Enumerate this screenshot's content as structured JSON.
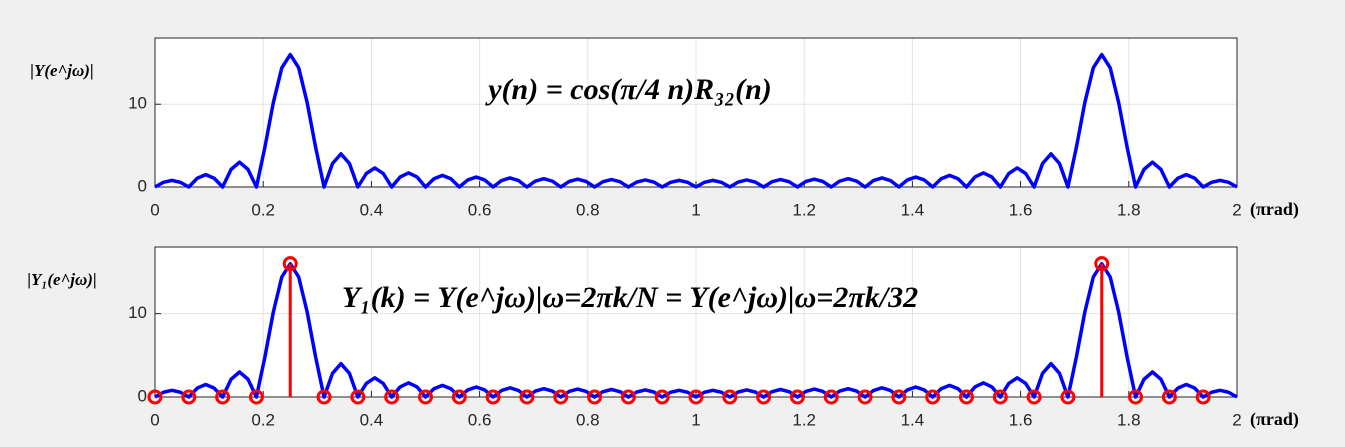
{
  "chart_data": [
    {
      "type": "line",
      "ylabel": "|Y(e^jω)|",
      "annotation": "y(n) = cos(π/4 n)R₃₂(n)",
      "x_unit": "(πrad)",
      "xlim": [
        0,
        2
      ],
      "xticks": [
        0,
        0.2,
        0.4,
        0.6,
        0.8,
        1,
        1.2,
        1.4,
        1.6,
        1.8,
        2
      ],
      "ylim": [
        0,
        18
      ],
      "yticks": [
        0,
        10
      ],
      "grid": true,
      "x": [
        0,
        0.015625,
        0.03125,
        0.046875,
        0.0625,
        0.078125,
        0.09375,
        0.109375,
        0.125,
        0.140625,
        0.15625,
        0.171875,
        0.1875,
        0.203125,
        0.21875,
        0.234375,
        0.25,
        0.265625,
        0.28125,
        0.296875,
        0.3125,
        0.328125,
        0.34375,
        0.359375,
        0.375,
        0.390625,
        0.40625,
        0.421875,
        0.4375,
        0.453125,
        0.46875,
        0.484375,
        0.5,
        0.515625,
        0.53125,
        0.546875,
        0.5625,
        0.578125,
        0.59375,
        0.609375,
        0.625,
        0.640625,
        0.65625,
        0.671875,
        0.6875,
        0.703125,
        0.71875,
        0.734375,
        0.75,
        0.765625,
        0.78125,
        0.796875,
        0.8125,
        0.828125,
        0.84375,
        0.859375,
        0.875,
        0.890625,
        0.90625,
        0.921875,
        0.9375,
        0.953125,
        0.96875,
        0.984375,
        1,
        1.015625,
        1.03125,
        1.046875,
        1.0625,
        1.078125,
        1.09375,
        1.109375,
        1.125,
        1.140625,
        1.15625,
        1.171875,
        1.1875,
        1.203125,
        1.21875,
        1.234375,
        1.25,
        1.265625,
        1.28125,
        1.296875,
        1.3125,
        1.328125,
        1.34375,
        1.359375,
        1.375,
        1.390625,
        1.40625,
        1.421875,
        1.4375,
        1.453125,
        1.46875,
        1.484375,
        1.5,
        1.515625,
        1.53125,
        1.546875,
        1.5625,
        1.578125,
        1.59375,
        1.609375,
        1.625,
        1.640625,
        1.65625,
        1.671875,
        1.6875,
        1.703125,
        1.71875,
        1.734375,
        1.75,
        1.765625,
        1.78125,
        1.796875,
        1.8125,
        1.828125,
        1.84375,
        1.859375,
        1.875,
        1.890625,
        1.90625,
        1.921875,
        1.9375,
        1.953125,
        1.96875,
        1.984375,
        2
      ],
      "series": [
        {
          "color": "#0000ff",
          "values": [
            0,
            0.57,
            0.8,
            0.57,
            0,
            1.06,
            1.5,
            1.06,
            0,
            2.13,
            3,
            2.13,
            0,
            4.8,
            10.2,
            14.4,
            16,
            14.4,
            10.2,
            4.8,
            0,
            2.84,
            4,
            2.84,
            0,
            1.63,
            2.3,
            1.63,
            0,
            1.21,
            1.7,
            1.21,
            0,
            0.99,
            1.4,
            0.99,
            0,
            0.85,
            1.2,
            0.85,
            0,
            0.78,
            1.1,
            0.78,
            0,
            0.71,
            1,
            0.71,
            0,
            0.67,
            0.95,
            0.67,
            0,
            0.64,
            0.9,
            0.64,
            0,
            0.6,
            0.85,
            0.6,
            0,
            0.57,
            0.8,
            0.57,
            0,
            0.57,
            0.8,
            0.57,
            0,
            0.6,
            0.85,
            0.6,
            0,
            0.64,
            0.9,
            0.64,
            0,
            0.67,
            0.95,
            0.67,
            0,
            0.71,
            1,
            0.71,
            0,
            0.78,
            1.1,
            0.78,
            0,
            0.85,
            1.2,
            0.85,
            0,
            0.99,
            1.4,
            0.99,
            0,
            1.21,
            1.7,
            1.21,
            0,
            1.63,
            2.3,
            1.63,
            0,
            2.84,
            4,
            2.84,
            0,
            4.8,
            10.2,
            14.4,
            16,
            14.4,
            10.2,
            4.8,
            0,
            2.13,
            3,
            2.13,
            0,
            1.06,
            1.5,
            1.06,
            0,
            0.57,
            0.8,
            0.57,
            0
          ]
        }
      ]
    },
    {
      "type": "line+stem",
      "ylabel": "|Y₁(e^jω)|",
      "annotation": "Y₁(k) = Y(e^jω)|ω=2πk/N = Y(e^jω)|ω=2πk/32",
      "x_unit": "(πrad)",
      "xlim": [
        0,
        2
      ],
      "xticks": [
        0,
        0.2,
        0.4,
        0.6,
        0.8,
        1,
        1.2,
        1.4,
        1.6,
        1.8,
        2
      ],
      "ylim": [
        0,
        18
      ],
      "yticks": [
        0,
        10
      ],
      "grid": true,
      "x": [
        0,
        0.015625,
        0.03125,
        0.046875,
        0.0625,
        0.078125,
        0.09375,
        0.109375,
        0.125,
        0.140625,
        0.15625,
        0.171875,
        0.1875,
        0.203125,
        0.21875,
        0.234375,
        0.25,
        0.265625,
        0.28125,
        0.296875,
        0.3125,
        0.328125,
        0.34375,
        0.359375,
        0.375,
        0.390625,
        0.40625,
        0.421875,
        0.4375,
        0.453125,
        0.46875,
        0.484375,
        0.5,
        0.515625,
        0.53125,
        0.546875,
        0.5625,
        0.578125,
        0.59375,
        0.609375,
        0.625,
        0.640625,
        0.65625,
        0.671875,
        0.6875,
        0.703125,
        0.71875,
        0.734375,
        0.75,
        0.765625,
        0.78125,
        0.796875,
        0.8125,
        0.828125,
        0.84375,
        0.859375,
        0.875,
        0.890625,
        0.90625,
        0.921875,
        0.9375,
        0.953125,
        0.96875,
        0.984375,
        1,
        1.015625,
        1.03125,
        1.046875,
        1.0625,
        1.078125,
        1.09375,
        1.109375,
        1.125,
        1.140625,
        1.15625,
        1.171875,
        1.1875,
        1.203125,
        1.21875,
        1.234375,
        1.25,
        1.265625,
        1.28125,
        1.296875,
        1.3125,
        1.328125,
        1.34375,
        1.359375,
        1.375,
        1.390625,
        1.40625,
        1.421875,
        1.4375,
        1.453125,
        1.46875,
        1.484375,
        1.5,
        1.515625,
        1.53125,
        1.546875,
        1.5625,
        1.578125,
        1.59375,
        1.609375,
        1.625,
        1.640625,
        1.65625,
        1.671875,
        1.6875,
        1.703125,
        1.71875,
        1.734375,
        1.75,
        1.765625,
        1.78125,
        1.796875,
        1.8125,
        1.828125,
        1.84375,
        1.859375,
        1.875,
        1.890625,
        1.90625,
        1.921875,
        1.9375,
        1.953125,
        1.96875,
        1.984375,
        2
      ],
      "series": [
        {
          "color": "#0000ff",
          "values": [
            0,
            0.57,
            0.8,
            0.57,
            0,
            1.06,
            1.5,
            1.06,
            0,
            2.13,
            3,
            2.13,
            0,
            4.8,
            10.2,
            14.4,
            16,
            14.4,
            10.2,
            4.8,
            0,
            2.84,
            4,
            2.84,
            0,
            1.63,
            2.3,
            1.63,
            0,
            1.21,
            1.7,
            1.21,
            0,
            0.99,
            1.4,
            0.99,
            0,
            0.85,
            1.2,
            0.85,
            0,
            0.78,
            1.1,
            0.78,
            0,
            0.71,
            1,
            0.71,
            0,
            0.67,
            0.95,
            0.67,
            0,
            0.64,
            0.9,
            0.64,
            0,
            0.6,
            0.85,
            0.6,
            0,
            0.57,
            0.8,
            0.57,
            0,
            0.57,
            0.8,
            0.57,
            0,
            0.6,
            0.85,
            0.6,
            0,
            0.64,
            0.9,
            0.64,
            0,
            0.67,
            0.95,
            0.67,
            0,
            0.71,
            1,
            0.71,
            0,
            0.78,
            1.1,
            0.78,
            0,
            0.85,
            1.2,
            0.85,
            0,
            0.99,
            1.4,
            0.99,
            0,
            1.21,
            1.7,
            1.21,
            0,
            1.63,
            2.3,
            1.63,
            0,
            2.84,
            4,
            2.84,
            0,
            4.8,
            10.2,
            14.4,
            16,
            14.4,
            10.2,
            4.8,
            0,
            2.13,
            3,
            2.13,
            0,
            1.06,
            1.5,
            1.06,
            0,
            0.57,
            0.8,
            0.57,
            0
          ]
        }
      ],
      "stems": {
        "color": "#ff0000",
        "x": [
          0,
          0.0625,
          0.125,
          0.1875,
          0.25,
          0.3125,
          0.375,
          0.4375,
          0.5,
          0.5625,
          0.625,
          0.6875,
          0.75,
          0.8125,
          0.875,
          0.9375,
          1,
          1.0625,
          1.125,
          1.1875,
          1.25,
          1.3125,
          1.375,
          1.4375,
          1.5,
          1.5625,
          1.625,
          1.6875,
          1.75,
          1.8125,
          1.875,
          1.9375
        ],
        "values": [
          0,
          0,
          0,
          0,
          16,
          0,
          0,
          0,
          0,
          0,
          0,
          0,
          0,
          0,
          0,
          0,
          0,
          0,
          0,
          0,
          0,
          0,
          0,
          0,
          0,
          0,
          0,
          0,
          16,
          0,
          0,
          0
        ]
      }
    }
  ]
}
